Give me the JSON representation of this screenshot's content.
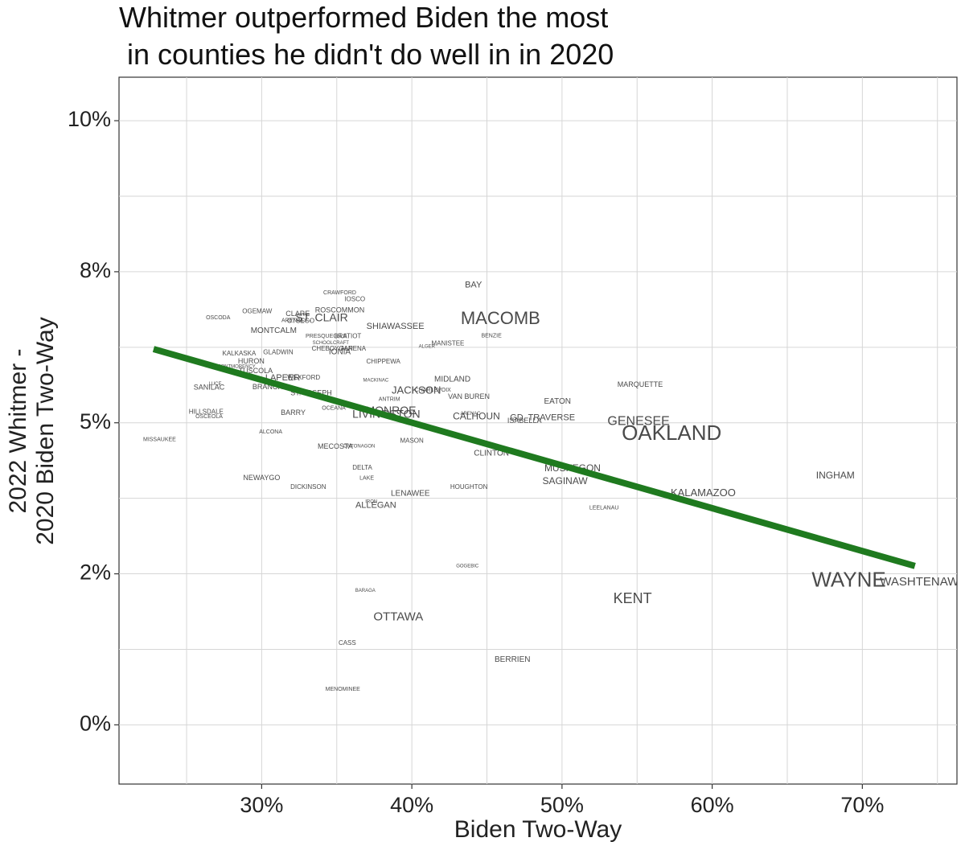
{
  "chart_data": {
    "type": "scatter",
    "title_lines": [
      "Whitmer outperformed Biden the most",
      " in counties he didn't do well in in 2020"
    ],
    "xlabel": "Biden Two-Way",
    "ylabel_lines": [
      "2022 Whitmer -",
      "2020 Biden Two-Way"
    ],
    "xlim": [
      0.205,
      0.763
    ],
    "ylim": [
      -0.0098,
      0.1072
    ],
    "x_ticks": [
      0.3,
      0.4,
      0.5,
      0.6,
      0.7
    ],
    "x_tick_labels": [
      "30%",
      "40%",
      "50%",
      "60%",
      "70%"
    ],
    "y_ticks": [
      0,
      0.025,
      0.05,
      0.075,
      0.1
    ],
    "y_tick_labels": [
      "0%",
      "2%",
      "5%",
      "8%",
      "10%"
    ],
    "grid": true,
    "trend_line": {
      "color": "#1f7a1f",
      "x": [
        0.228,
        0.735
      ],
      "y": [
        0.0622,
        0.0263
      ]
    },
    "counties": [
      {
        "name": "BAY",
        "x": 0.441,
        "y": 0.0728,
        "size": 11
      },
      {
        "name": "CRAWFORD",
        "x": 0.352,
        "y": 0.0715,
        "size": 7
      },
      {
        "name": "IOSCO",
        "x": 0.362,
        "y": 0.0704,
        "size": 8
      },
      {
        "name": "OGEMAW",
        "x": 0.297,
        "y": 0.0684,
        "size": 8
      },
      {
        "name": "OSCODA",
        "x": 0.271,
        "y": 0.0674,
        "size": 7
      },
      {
        "name": "ROSCOMMON",
        "x": 0.352,
        "y": 0.0686,
        "size": 9
      },
      {
        "name": "CLARE",
        "x": 0.324,
        "y": 0.068,
        "size": 9
      },
      {
        "name": "ARENAC",
        "x": 0.321,
        "y": 0.0669,
        "size": 7
      },
      {
        "name": "OTSEGO",
        "x": 0.326,
        "y": 0.0668,
        "size": 8
      },
      {
        "name": "ST. CLAIR",
        "x": 0.34,
        "y": 0.0673,
        "size": 14
      },
      {
        "name": "MACOMB",
        "x": 0.459,
        "y": 0.0671,
        "size": 22
      },
      {
        "name": "SHIAWASSEE",
        "x": 0.389,
        "y": 0.0659,
        "size": 11
      },
      {
        "name": "MONTCALM",
        "x": 0.308,
        "y": 0.0652,
        "size": 10
      },
      {
        "name": "PRESQUE ISLE",
        "x": 0.343,
        "y": 0.0643,
        "size": 7
      },
      {
        "name": "GRATIOT",
        "x": 0.357,
        "y": 0.0643,
        "size": 8
      },
      {
        "name": "BENZIE",
        "x": 0.453,
        "y": 0.0644,
        "size": 7
      },
      {
        "name": "SCHOOLCRAFT",
        "x": 0.346,
        "y": 0.0632,
        "size": 6
      },
      {
        "name": "MANISTEE",
        "x": 0.424,
        "y": 0.0631,
        "size": 8
      },
      {
        "name": "ALGER",
        "x": 0.41,
        "y": 0.0626,
        "size": 6
      },
      {
        "name": "CHEBOYGAN",
        "x": 0.347,
        "y": 0.0622,
        "size": 8
      },
      {
        "name": "ALPENA",
        "x": 0.361,
        "y": 0.0622,
        "size": 8
      },
      {
        "name": "IONIA",
        "x": 0.352,
        "y": 0.0617,
        "size": 10
      },
      {
        "name": "GLADWIN",
        "x": 0.311,
        "y": 0.0616,
        "size": 8
      },
      {
        "name": "KALKASKA",
        "x": 0.285,
        "y": 0.0614,
        "size": 8
      },
      {
        "name": "HURON",
        "x": 0.293,
        "y": 0.0601,
        "size": 9
      },
      {
        "name": "CHIPPEWA",
        "x": 0.381,
        "y": 0.0601,
        "size": 8
      },
      {
        "name": "MONTMORENCY",
        "x": 0.283,
        "y": 0.0593,
        "size": 6
      },
      {
        "name": "TUSCOLA",
        "x": 0.296,
        "y": 0.0585,
        "size": 9
      },
      {
        "name": "LAPEER",
        "x": 0.314,
        "y": 0.0574,
        "size": 11
      },
      {
        "name": "WEXFORD",
        "x": 0.328,
        "y": 0.0574,
        "size": 8
      },
      {
        "name": "MACKINAC",
        "x": 0.376,
        "y": 0.057,
        "size": 6
      },
      {
        "name": "MIDLAND",
        "x": 0.427,
        "y": 0.0572,
        "size": 10
      },
      {
        "name": "LUCE",
        "x": 0.269,
        "y": 0.0564,
        "size": 6
      },
      {
        "name": "MARQUETTE",
        "x": 0.552,
        "y": 0.0563,
        "size": 9
      },
      {
        "name": "SANILAC",
        "x": 0.265,
        "y": 0.0558,
        "size": 9
      },
      {
        "name": "BRANCH",
        "x": 0.304,
        "y": 0.0559,
        "size": 9
      },
      {
        "name": "JACKSON",
        "x": 0.403,
        "y": 0.0553,
        "size": 13
      },
      {
        "name": "CHARLEVOIX",
        "x": 0.414,
        "y": 0.0554,
        "size": 7
      },
      {
        "name": "ST. JOSEPH",
        "x": 0.333,
        "y": 0.0549,
        "size": 9
      },
      {
        "name": "VAN BUREN",
        "x": 0.438,
        "y": 0.0543,
        "size": 9
      },
      {
        "name": "ANTRIM",
        "x": 0.385,
        "y": 0.0539,
        "size": 7
      },
      {
        "name": "EATON",
        "x": 0.497,
        "y": 0.0535,
        "size": 10
      },
      {
        "name": "OCEANA",
        "x": 0.348,
        "y": 0.0524,
        "size": 7
      },
      {
        "name": "HILLSDALE",
        "x": 0.263,
        "y": 0.0518,
        "size": 8
      },
      {
        "name": "BARRY",
        "x": 0.321,
        "y": 0.0516,
        "size": 9
      },
      {
        "name": "OSCEOLA",
        "x": 0.265,
        "y": 0.051,
        "size": 7
      },
      {
        "name": "LIVINGSTON",
        "x": 0.383,
        "y": 0.0513,
        "size": 14
      },
      {
        "name": "MONROE",
        "x": 0.386,
        "y": 0.0519,
        "size": 14
      },
      {
        "name": "CALHOUN",
        "x": 0.443,
        "y": 0.051,
        "size": 12
      },
      {
        "name": "ARENAC",
        "x": 0.439,
        "y": 0.0515,
        "size": 6
      },
      {
        "name": "GD. TRAVERSE",
        "x": 0.487,
        "y": 0.0508,
        "size": 11
      },
      {
        "name": "ISABELLA",
        "x": 0.475,
        "y": 0.0503,
        "size": 9
      },
      {
        "name": "GENESEE",
        "x": 0.551,
        "y": 0.0502,
        "size": 16
      },
      {
        "name": "ALCONA",
        "x": 0.306,
        "y": 0.0485,
        "size": 7
      },
      {
        "name": "OAKLAND",
        "x": 0.573,
        "y": 0.0481,
        "size": 26
      },
      {
        "name": "MISSAUKEE",
        "x": 0.232,
        "y": 0.0472,
        "size": 7
      },
      {
        "name": "MASON",
        "x": 0.4,
        "y": 0.047,
        "size": 8
      },
      {
        "name": "MECOSTA",
        "x": 0.349,
        "y": 0.046,
        "size": 9
      },
      {
        "name": "ONTONAGON",
        "x": 0.365,
        "y": 0.0461,
        "size": 6
      },
      {
        "name": "CLINTON",
        "x": 0.453,
        "y": 0.0449,
        "size": 10
      },
      {
        "name": "DELTA",
        "x": 0.367,
        "y": 0.0425,
        "size": 8
      },
      {
        "name": "MUSKEGON",
        "x": 0.507,
        "y": 0.0424,
        "size": 12
      },
      {
        "name": "NEWAYGO",
        "x": 0.3,
        "y": 0.0408,
        "size": 9
      },
      {
        "name": "LAKE",
        "x": 0.37,
        "y": 0.0408,
        "size": 7
      },
      {
        "name": "INGHAM",
        "x": 0.682,
        "y": 0.0412,
        "size": 12
      },
      {
        "name": "SAGINAW",
        "x": 0.502,
        "y": 0.0403,
        "size": 12
      },
      {
        "name": "DICKINSON",
        "x": 0.331,
        "y": 0.0393,
        "size": 8
      },
      {
        "name": "HOUGHTON",
        "x": 0.438,
        "y": 0.0393,
        "size": 8
      },
      {
        "name": "LENAWEE",
        "x": 0.399,
        "y": 0.0383,
        "size": 10
      },
      {
        "name": "KALAMAZOO",
        "x": 0.594,
        "y": 0.0383,
        "size": 13
      },
      {
        "name": "IRON",
        "x": 0.373,
        "y": 0.0369,
        "size": 6
      },
      {
        "name": "ALLEGAN",
        "x": 0.376,
        "y": 0.0363,
        "size": 11
      },
      {
        "name": "LEELANAU",
        "x": 0.528,
        "y": 0.0359,
        "size": 7
      },
      {
        "name": "GOGEBIC",
        "x": 0.437,
        "y": 0.0263,
        "size": 6
      },
      {
        "name": "WAYNE",
        "x": 0.691,
        "y": 0.0238,
        "size": 26
      },
      {
        "name": "WASHTENAW",
        "x": 0.738,
        "y": 0.0236,
        "size": 15
      },
      {
        "name": "BARAGA",
        "x": 0.369,
        "y": 0.0222,
        "size": 6
      },
      {
        "name": "KENT",
        "x": 0.547,
        "y": 0.0208,
        "size": 18
      },
      {
        "name": "OTTAWA",
        "x": 0.391,
        "y": 0.0178,
        "size": 15
      },
      {
        "name": "CASS",
        "x": 0.357,
        "y": 0.0135,
        "size": 8
      },
      {
        "name": "BERRIEN",
        "x": 0.467,
        "y": 0.0108,
        "size": 10
      },
      {
        "name": "MENOMINEE",
        "x": 0.354,
        "y": 0.0059,
        "size": 7
      }
    ]
  }
}
